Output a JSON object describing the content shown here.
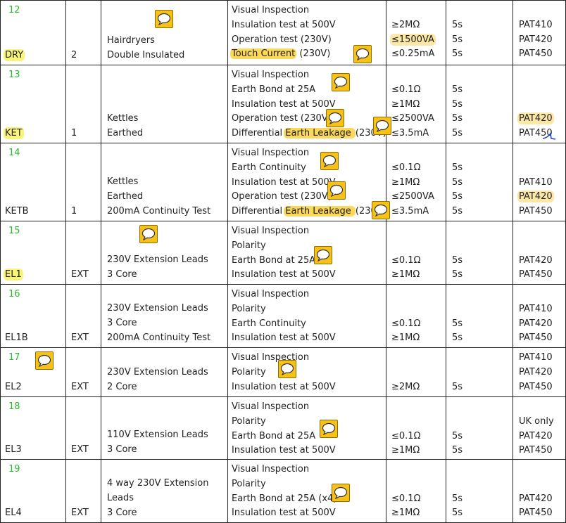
{
  "rows": [
    {
      "num": "12",
      "code": "DRY",
      "code_hl": "yellow",
      "qty": "2",
      "desc": [
        "Hairdryers",
        "Double Insulated"
      ],
      "tests": [
        {
          "t": "Visual Inspection"
        },
        {
          "t": "Insulation test at 500V"
        },
        {
          "t": "Operation test (230V)"
        },
        {
          "t": "Touch Current",
          "hl": "orange",
          "suffix": " (230V)"
        }
      ],
      "limits": [
        "",
        "≥2MΩ",
        "≤1500VA",
        "≤0.25mA"
      ],
      "limits_hl": [
        null,
        null,
        "light",
        null
      ],
      "durations": [
        "",
        "5s",
        "5s",
        "5s"
      ],
      "pats": [
        "",
        "PAT410",
        "PAT420",
        "PAT450"
      ],
      "pats_hl": [
        null,
        null,
        null,
        null
      ]
    },
    {
      "num": "13",
      "code": "KET",
      "code_hl": "yellow",
      "qty": "1",
      "desc": [
        "Kettles",
        "Earthed"
      ],
      "tests": [
        {
          "t": "Visual Inspection"
        },
        {
          "t": "Earth Bond at 25A"
        },
        {
          "t": "Insulation test at 500V"
        },
        {
          "t": "Operation test (230V)"
        },
        {
          "t": "Differential ",
          "hl_part": "Earth Leakage ",
          "suffix": "(230V)"
        }
      ],
      "limits": [
        "",
        "≤0.1Ω",
        "≥1MΩ",
        "≤2500VA",
        "≤3.5mA"
      ],
      "limits_hl": [
        null,
        null,
        null,
        null,
        null
      ],
      "durations": [
        "",
        "5s",
        "5s",
        "5s",
        "5s"
      ],
      "pats": [
        "",
        "",
        "",
        "PAT420",
        "PAT450"
      ],
      "pats_hl": [
        null,
        null,
        null,
        "light",
        null
      ]
    },
    {
      "num": "14",
      "code": "KETB",
      "code_hl": null,
      "qty": "1",
      "desc": [
        "Kettles",
        "Earthed",
        "200mA Continuity Test"
      ],
      "tests": [
        {
          "t": "Visual Inspection"
        },
        {
          "t": "Earth Continuity"
        },
        {
          "t": "Insulation test at 500V"
        },
        {
          "t": "Operation test (230V)"
        },
        {
          "t": "Differential ",
          "hl_part": "Earth Leakage ",
          "suffix": "(230V)"
        }
      ],
      "limits": [
        "",
        "≤0.1Ω",
        "≥1MΩ",
        "≤2500VA",
        "≤3.5mA"
      ],
      "limits_hl": [
        null,
        null,
        null,
        null,
        null
      ],
      "durations": [
        "",
        "5s",
        "5s",
        "5s",
        "5s"
      ],
      "pats": [
        "",
        "",
        "PAT410",
        "PAT420",
        "PAT450"
      ],
      "pats_hl": [
        null,
        null,
        null,
        "light",
        null
      ]
    },
    {
      "num": "15",
      "code": "EL1",
      "code_hl": "yellow",
      "qty": "EXT",
      "desc": [
        "230V Extension Leads",
        "3 Core"
      ],
      "tests": [
        {
          "t": "Visual Inspection"
        },
        {
          "t": "Polarity"
        },
        {
          "t": "Earth Bond at 25A"
        },
        {
          "t": "Insulation test at 500V"
        }
      ],
      "limits": [
        "",
        "",
        "≤0.1Ω",
        "≥1MΩ"
      ],
      "limits_hl": [
        null,
        null,
        null,
        null
      ],
      "durations": [
        "",
        "",
        "5s",
        "5s"
      ],
      "pats": [
        "",
        "",
        "PAT420",
        "PAT450"
      ],
      "pats_hl": [
        null,
        null,
        null,
        null
      ]
    },
    {
      "num": "16",
      "code": "EL1B",
      "code_hl": null,
      "qty": "EXT",
      "desc": [
        "230V Extension Leads",
        "3 Core",
        "200mA Continuity Test"
      ],
      "tests": [
        {
          "t": "Visual Inspection"
        },
        {
          "t": "Polarity"
        },
        {
          "t": "Earth Continuity"
        },
        {
          "t": "Insulation test at 500V"
        }
      ],
      "limits": [
        "",
        "",
        "≤0.1Ω",
        "≥1MΩ"
      ],
      "limits_hl": [
        null,
        null,
        null,
        null
      ],
      "durations": [
        "",
        "",
        "5s",
        "5s"
      ],
      "pats": [
        "",
        "PAT410",
        "PAT420",
        "PAT450"
      ],
      "pats_hl": [
        null,
        null,
        null,
        null
      ]
    },
    {
      "num": "17",
      "code": "EL2",
      "code_hl": null,
      "qty": "EXT",
      "desc": [
        "230V Extension Leads",
        "2 Core"
      ],
      "tests": [
        {
          "t": "Visual Inspection"
        },
        {
          "t": "Polarity"
        },
        {
          "t": "Insulation test at 500V"
        }
      ],
      "limits": [
        "",
        "",
        "≥2MΩ"
      ],
      "limits_hl": [
        null,
        null,
        null
      ],
      "durations": [
        "",
        "",
        "5s"
      ],
      "pats": [
        "PAT410",
        "PAT420",
        "PAT450"
      ],
      "pats_hl": [
        null,
        null,
        null
      ]
    },
    {
      "num": "18",
      "code": "EL3",
      "code_hl": null,
      "qty": "EXT",
      "desc": [
        "110V Extension Leads",
        "3 Core"
      ],
      "tests": [
        {
          "t": "Visual Inspection"
        },
        {
          "t": "Polarity"
        },
        {
          "t": "Earth Bond at 25A"
        },
        {
          "t": "Insulation test at 500V"
        }
      ],
      "limits": [
        "",
        "",
        "≤0.1Ω",
        "≥1MΩ"
      ],
      "limits_hl": [
        null,
        null,
        null,
        null
      ],
      "durations": [
        "",
        "",
        "5s",
        "5s"
      ],
      "pats": [
        "",
        "UK only",
        "PAT420",
        "PAT450"
      ],
      "pats_hl": [
        null,
        null,
        null,
        null
      ]
    },
    {
      "num": "19",
      "code": "EL4",
      "code_hl": null,
      "qty": "EXT",
      "desc": [
        "4 way 230V Extension",
        "Leads",
        "3 Core"
      ],
      "tests": [
        {
          "t": "Visual Inspection"
        },
        {
          "t": "Polarity"
        },
        {
          "t": "Earth Bond at 25A (x4)"
        },
        {
          "t": "Insulation test at 500V"
        }
      ],
      "limits": [
        "",
        "",
        "≤0.1Ω",
        "≥1MΩ"
      ],
      "limits_hl": [
        null,
        null,
        null,
        null
      ],
      "durations": [
        "",
        "",
        "5s",
        "5s"
      ],
      "pats": [
        "",
        "",
        "PAT420",
        "PAT450"
      ],
      "pats_hl": [
        null,
        null,
        null,
        null
      ]
    }
  ],
  "colors": {
    "number": "#2eb82e",
    "highlight_yellow": "#f9f57a",
    "highlight_orange": "#fbd85a",
    "comment_icon": "#f7c116"
  }
}
